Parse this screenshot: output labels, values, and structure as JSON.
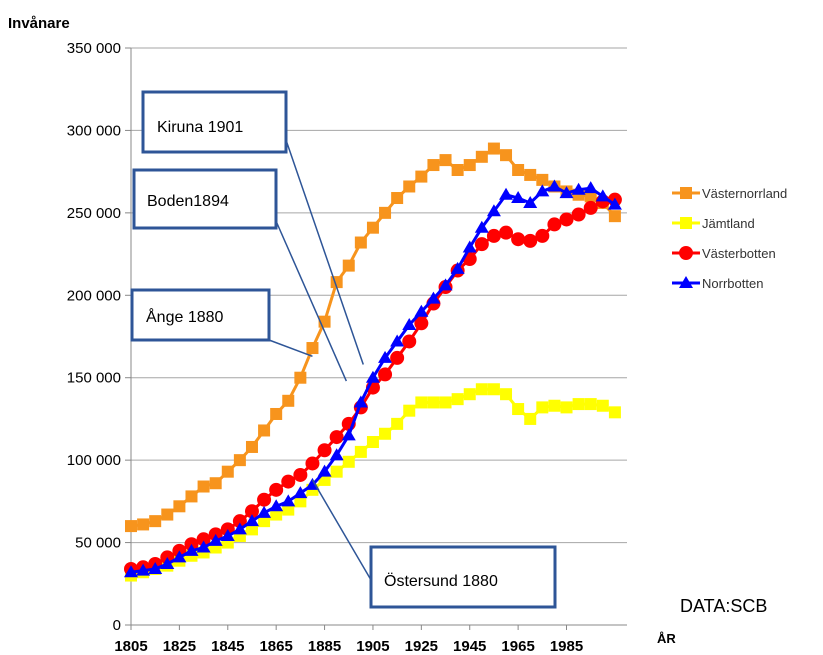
{
  "chart_data": {
    "type": "line",
    "ylabel": "Invånare",
    "xlabel": "ÅR",
    "source": "DATA:SCB",
    "ylim": [
      0,
      350000
    ],
    "xlim": [
      1805,
      2010
    ],
    "x_ticks": [
      1805,
      1825,
      1845,
      1865,
      1885,
      1905,
      1925,
      1945,
      1965,
      1985
    ],
    "y_ticks": [
      {
        "value": 0,
        "label": "0"
      },
      {
        "value": 50000,
        "label": "50 000"
      },
      {
        "value": 100000,
        "label": "100 000"
      },
      {
        "value": 150000,
        "label": "150 000"
      },
      {
        "value": 200000,
        "label": "200 000"
      },
      {
        "value": 250000,
        "label": "250 000"
      },
      {
        "value": 300000,
        "label": "300 000"
      },
      {
        "value": 350000,
        "label": "350 000"
      }
    ],
    "grid": "horizontal",
    "legend_position": "right",
    "x": [
      1805,
      1810,
      1815,
      1820,
      1825,
      1830,
      1835,
      1840,
      1845,
      1850,
      1855,
      1860,
      1865,
      1870,
      1875,
      1880,
      1885,
      1890,
      1895,
      1900,
      1905,
      1910,
      1915,
      1920,
      1925,
      1930,
      1935,
      1940,
      1945,
      1950,
      1955,
      1960,
      1965,
      1970,
      1975,
      1980,
      1985,
      1990,
      1995,
      2000,
      2005
    ],
    "series": [
      {
        "name": "Västernorrland",
        "color": "#f7941d",
        "marker": "square",
        "values": [
          60000,
          61000,
          63000,
          67000,
          72000,
          78000,
          84000,
          86000,
          93000,
          100000,
          108000,
          118000,
          128000,
          136000,
          150000,
          168000,
          184000,
          208000,
          218000,
          232000,
          241000,
          250000,
          259000,
          266000,
          272000,
          279000,
          282000,
          276000,
          279000,
          284000,
          289000,
          285000,
          276000,
          273000,
          270000,
          266000,
          263000,
          261000,
          260000,
          256000,
          248000
        ]
      },
      {
        "name": "Jämtland",
        "color": "#ffff00",
        "marker": "square",
        "values": [
          30000,
          32000,
          34000,
          36000,
          39000,
          42000,
          44000,
          47000,
          50000,
          54000,
          58000,
          63000,
          67000,
          70000,
          75000,
          82000,
          88000,
          93000,
          99000,
          105000,
          111000,
          116000,
          122000,
          130000,
          135000,
          135000,
          135000,
          137000,
          140000,
          143000,
          143000,
          140000,
          131000,
          125000,
          132000,
          133000,
          132000,
          134000,
          134000,
          133000,
          129000
        ]
      },
      {
        "name": "Västerbotten",
        "color": "#ff0000",
        "marker": "circle",
        "values": [
          34000,
          35000,
          37000,
          41000,
          45000,
          49000,
          52000,
          55000,
          58000,
          63000,
          69000,
          76000,
          82000,
          87000,
          91000,
          98000,
          106000,
          114000,
          122000,
          132000,
          144000,
          152000,
          162000,
          172000,
          183000,
          195000,
          205000,
          215000,
          222000,
          231000,
          236000,
          238000,
          234000,
          233000,
          236000,
          243000,
          246000,
          249000,
          253000,
          257000,
          258000
        ]
      },
      {
        "name": "Norrbotten",
        "color": "#0000ff",
        "marker": "triangle",
        "values": [
          32000,
          33000,
          34000,
          37000,
          41000,
          45000,
          47000,
          51000,
          54000,
          58000,
          63000,
          68000,
          72000,
          75000,
          80000,
          85000,
          93000,
          103000,
          115000,
          135000,
          150000,
          162000,
          172000,
          182000,
          190000,
          198000,
          206000,
          216000,
          229000,
          241000,
          251000,
          261000,
          259000,
          256000,
          263000,
          266000,
          262000,
          264000,
          265000,
          260000,
          255000
        ]
      }
    ],
    "annotations": [
      {
        "text": "Kiruna 1901",
        "year": 1901
      },
      {
        "text": "Boden1894",
        "year": 1894
      },
      {
        "text": "Ånge 1880",
        "year": 1880
      },
      {
        "text": "Östersund 1880",
        "year": 1880
      }
    ]
  }
}
